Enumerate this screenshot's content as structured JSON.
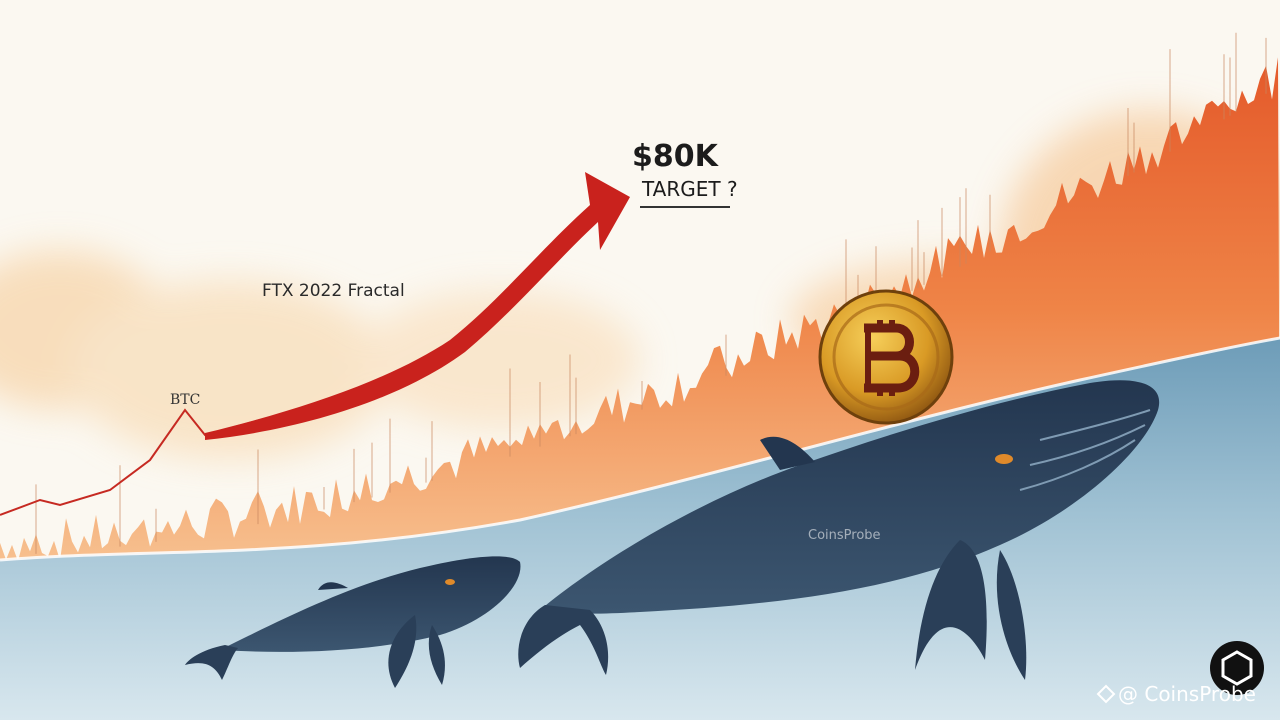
{
  "annotations": {
    "target_price": "$80K",
    "target_label": "TARGET ?",
    "fractal_label": "FTX 2022 Fractal",
    "asset_label": "BTC"
  },
  "watermark": {
    "center": "CoinsProbe",
    "corner": "@ CoinsProbe"
  }
}
